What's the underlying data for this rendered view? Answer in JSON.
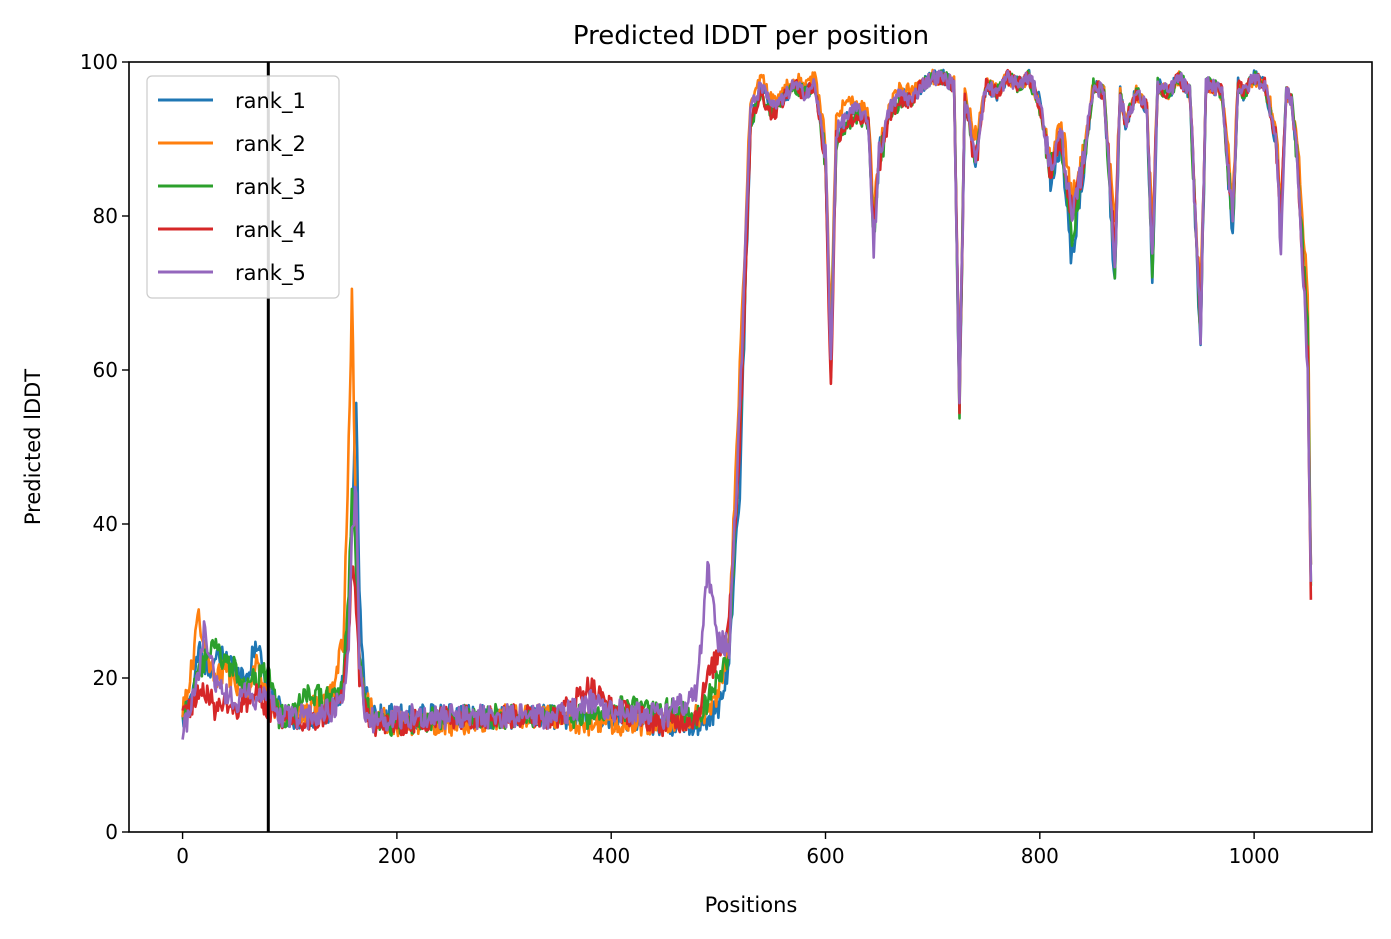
{
  "chart_data": {
    "type": "line",
    "title": "Predicted lDDT per position",
    "xlabel": "Positions",
    "ylabel": "Predicted lDDT",
    "xlim": [
      -50,
      1110
    ],
    "ylim": [
      0,
      100
    ],
    "xticks": [
      0,
      200,
      400,
      600,
      800,
      1000
    ],
    "yticks": [
      0,
      20,
      40,
      60,
      80,
      100
    ],
    "grid": false,
    "legend_position": "upper-left",
    "vertical_line": {
      "x": 80,
      "color": "#000000"
    },
    "key_x": [
      0,
      10,
      15,
      20,
      30,
      40,
      50,
      60,
      70,
      80,
      90,
      100,
      120,
      140,
      150,
      155,
      158,
      162,
      165,
      170,
      180,
      200,
      250,
      300,
      350,
      380,
      400,
      450,
      480,
      490,
      500,
      510,
      520,
      530,
      540,
      550,
      560,
      570,
      580,
      590,
      600,
      605,
      610,
      620,
      630,
      640,
      645,
      650,
      660,
      670,
      680,
      690,
      700,
      710,
      720,
      725,
      730,
      740,
      750,
      760,
      770,
      780,
      790,
      800,
      810,
      820,
      830,
      840,
      850,
      860,
      870,
      875,
      880,
      890,
      900,
      905,
      910,
      920,
      930,
      940,
      950,
      955,
      960,
      970,
      980,
      985,
      990,
      1000,
      1010,
      1020,
      1025,
      1030,
      1035,
      1040,
      1050,
      1053
    ],
    "series": [
      {
        "name": "rank_1",
        "color": "#1f77b4",
        "values": [
          14,
          19,
          24,
          21,
          22,
          23,
          21,
          20,
          25,
          18,
          16,
          15,
          15,
          16,
          19,
          28,
          40,
          57,
          30,
          18,
          15,
          15,
          15,
          15,
          15,
          15,
          15,
          14,
          14,
          15,
          16,
          22,
          45,
          92,
          97,
          94,
          95,
          97,
          96,
          97,
          88,
          60,
          90,
          93,
          94,
          92,
          78,
          88,
          94,
          96,
          95,
          97,
          98,
          98,
          97,
          56,
          95,
          88,
          97,
          96,
          98,
          97,
          98,
          95,
          85,
          90,
          74,
          85,
          97,
          96,
          71,
          96,
          92,
          96,
          94,
          71,
          97,
          96,
          98,
          96,
          63,
          97,
          97,
          96,
          78,
          97,
          96,
          98,
          97,
          90,
          80,
          96,
          95,
          88,
          65,
          33
        ]
      },
      {
        "name": "rank_2",
        "color": "#ff7f0e",
        "values": [
          16,
          22,
          29,
          24,
          20,
          21,
          19,
          18,
          22,
          17,
          16,
          15,
          16,
          18,
          25,
          50,
          69,
          40,
          22,
          17,
          15,
          14,
          14,
          15,
          15,
          14,
          14,
          14,
          15,
          16,
          18,
          25,
          60,
          95,
          98,
          95,
          96,
          98,
          97,
          98,
          90,
          63,
          93,
          95,
          95,
          93,
          80,
          89,
          94,
          97,
          96,
          97,
          98,
          98,
          98,
          58,
          96,
          90,
          97,
          97,
          98,
          97,
          98,
          94,
          88,
          92,
          82,
          88,
          97,
          96,
          78,
          96,
          92,
          96,
          94,
          78,
          97,
          96,
          98,
          96,
          68,
          97,
          97,
          96,
          83,
          97,
          96,
          98,
          97,
          92,
          82,
          96,
          95,
          90,
          70,
          34
        ]
      },
      {
        "name": "rank_3",
        "color": "#2ca02c",
        "values": [
          15,
          18,
          20,
          22,
          24,
          22,
          21,
          19,
          20,
          21,
          15,
          15,
          18,
          17,
          20,
          30,
          45,
          35,
          22,
          17,
          14,
          14,
          15,
          15,
          15,
          15,
          16,
          16,
          15,
          17,
          20,
          23,
          50,
          92,
          96,
          93,
          95,
          97,
          96,
          97,
          87,
          60,
          90,
          92,
          93,
          92,
          77,
          87,
          93,
          95,
          95,
          97,
          98,
          98,
          97,
          55,
          95,
          87,
          97,
          96,
          98,
          97,
          98,
          94,
          86,
          90,
          77,
          86,
          97,
          96,
          73,
          96,
          92,
          96,
          94,
          73,
          97,
          96,
          98,
          96,
          64,
          97,
          97,
          96,
          79,
          97,
          96,
          98,
          97,
          90,
          80,
          96,
          95,
          88,
          66,
          32
        ]
      },
      {
        "name": "rank_4",
        "color": "#d62728",
        "values": [
          15,
          17,
          18,
          19,
          16,
          17,
          16,
          17,
          18,
          16,
          15,
          14,
          14,
          16,
          18,
          25,
          35,
          30,
          20,
          16,
          14,
          14,
          15,
          15,
          15,
          19,
          16,
          14,
          15,
          20,
          23,
          28,
          50,
          92,
          96,
          93,
          95,
          97,
          96,
          97,
          87,
          57,
          90,
          92,
          93,
          92,
          77,
          87,
          93,
          95,
          95,
          97,
          98,
          98,
          97,
          56,
          95,
          87,
          97,
          96,
          98,
          97,
          98,
          94,
          86,
          90,
          80,
          86,
          97,
          96,
          75,
          96,
          92,
          96,
          94,
          76,
          97,
          96,
          98,
          96,
          66,
          97,
          97,
          96,
          80,
          97,
          96,
          98,
          97,
          90,
          80,
          96,
          95,
          88,
          62,
          29
        ]
      },
      {
        "name": "rank_5",
        "color": "#9467bd",
        "values": [
          13,
          17,
          21,
          26,
          20,
          18,
          17,
          18,
          17,
          18,
          15,
          15,
          15,
          16,
          18,
          24,
          38,
          45,
          22,
          16,
          14,
          15,
          15,
          15,
          15,
          17,
          16,
          15,
          18,
          34,
          25,
          24,
          55,
          94,
          97,
          94,
          95,
          97,
          96,
          97,
          88,
          61,
          91,
          93,
          94,
          92,
          76,
          88,
          94,
          96,
          95,
          97,
          98,
          98,
          97,
          56,
          95,
          88,
          97,
          96,
          98,
          97,
          98,
          95,
          86,
          91,
          79,
          87,
          97,
          96,
          74,
          96,
          92,
          96,
          94,
          74,
          97,
          96,
          98,
          96,
          65,
          97,
          97,
          96,
          80,
          97,
          96,
          98,
          97,
          91,
          76,
          96,
          95,
          88,
          60,
          33
        ]
      }
    ]
  }
}
